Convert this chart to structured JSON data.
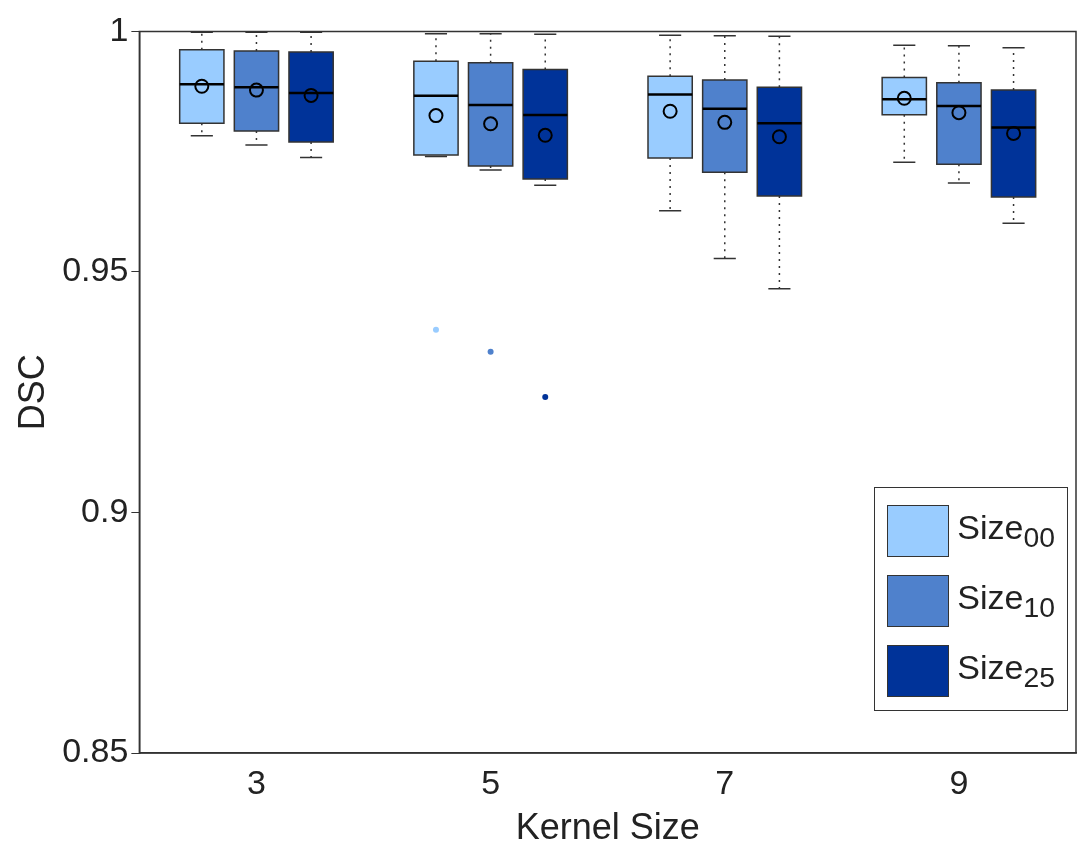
{
  "chart_data": {
    "type": "box",
    "xlabel": "Kernel Size",
    "ylabel": "DSC",
    "categories": [
      "3",
      "5",
      "7",
      "9"
    ],
    "ylim": [
      0.85,
      1
    ],
    "yticks": [
      0.85,
      0.9,
      0.95,
      1
    ],
    "grid": false,
    "legend": "bottom right",
    "series": [
      {
        "name": "Size$_{00}$",
        "color": "#99ccff",
        "boxes": [
          {
            "low": 0.9783,
            "q1": 0.9809,
            "median": 0.989,
            "q3": 0.9962,
            "high": 0.9998,
            "mean": 0.9886
          },
          {
            "low": 0.974,
            "q1": 0.9743,
            "median": 0.9866,
            "q3": 0.9938,
            "high": 0.9995,
            "mean": 0.9825,
            "outliers": [
              0.938
            ]
          },
          {
            "low": 0.9627,
            "q1": 0.9737,
            "median": 0.9869,
            "q3": 0.9907,
            "high": 0.9992,
            "mean": 0.9834
          },
          {
            "low": 0.9728,
            "q1": 0.9827,
            "median": 0.9859,
            "q3": 0.9904,
            "high": 0.9971,
            "mean": 0.9861
          }
        ]
      },
      {
        "name": "Size$_{10}$",
        "color": "#4f81cc",
        "boxes": [
          {
            "low": 0.9764,
            "q1": 0.9793,
            "median": 0.9884,
            "q3": 0.9959,
            "high": 0.9998,
            "mean": 0.9878
          },
          {
            "low": 0.9712,
            "q1": 0.972,
            "median": 0.9847,
            "q3": 0.9935,
            "high": 0.9995,
            "mean": 0.9808,
            "outliers": [
              0.9334
            ]
          },
          {
            "low": 0.9528,
            "q1": 0.9707,
            "median": 0.9839,
            "q3": 0.9899,
            "high": 0.9991,
            "mean": 0.9811
          },
          {
            "low": 0.9685,
            "q1": 0.9724,
            "median": 0.9845,
            "q3": 0.9893,
            "high": 0.997,
            "mean": 0.9831
          }
        ]
      },
      {
        "name": "Size$_{25}$",
        "color": "#003399",
        "boxes": [
          {
            "low": 0.9738,
            "q1": 0.977,
            "median": 0.9872,
            "q3": 0.9957,
            "high": 0.9998,
            "mean": 0.9867
          },
          {
            "low": 0.968,
            "q1": 0.9693,
            "median": 0.9826,
            "q3": 0.9921,
            "high": 0.9994,
            "mean": 0.9784,
            "outliers": [
              0.924
            ]
          },
          {
            "low": 0.9465,
            "q1": 0.9658,
            "median": 0.9809,
            "q3": 0.9884,
            "high": 0.999,
            "mean": 0.9781
          },
          {
            "low": 0.9601,
            "q1": 0.9656,
            "median": 0.98,
            "q3": 0.9878,
            "high": 0.9966,
            "mean": 0.9788
          }
        ]
      }
    ]
  }
}
